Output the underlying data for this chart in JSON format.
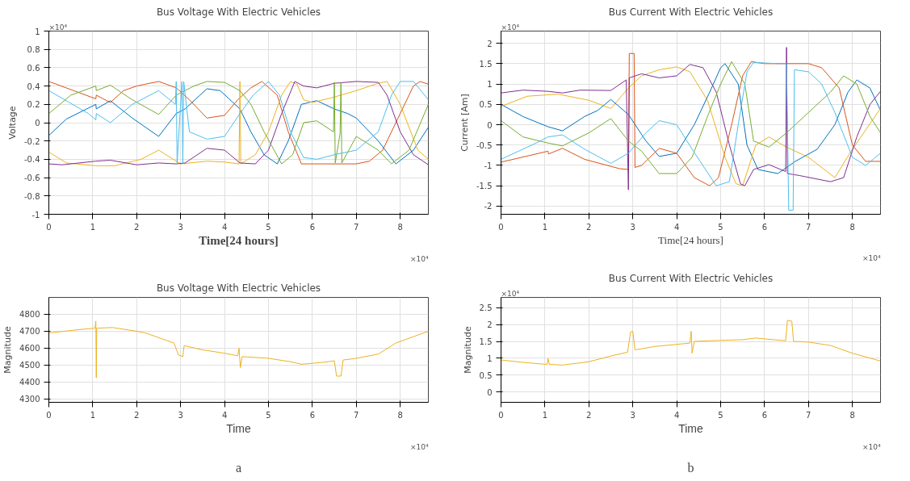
{
  "chart_data": [
    {
      "type": "line",
      "title": "Bus Voltage With Electric Vehicles",
      "xlabel": "Time[24 hours]",
      "ylabel": "Voltage",
      "annotations": [
        "×10⁴",
        "×10⁴"
      ],
      "xlim": [
        0,
        8.64
      ],
      "xticks": [
        0,
        1,
        2,
        3,
        4,
        5,
        6,
        7,
        8
      ],
      "ylim": [
        -1,
        1
      ],
      "yticks": [
        -1,
        -0.8,
        -0.6,
        -0.4,
        -0.2,
        0,
        0.2,
        0.4,
        0.6,
        0.8,
        1
      ],
      "grid": true,
      "marker": "none",
      "line_style": "solid",
      "series": [
        {
          "color": "#0072bd",
          "x": [
            0,
            0.4,
            1.07,
            1.08,
            1.4,
            1.9,
            2.5,
            2.9,
            3.1,
            3.6,
            3.9,
            4.35,
            4.6,
            4.9,
            5.2,
            5.45,
            5.75,
            6.1,
            6.5,
            6.8,
            7.0,
            7.5,
            7.9,
            8.3,
            8.64
          ],
          "values": [
            -0.14,
            0.04,
            0.2,
            0.15,
            0.24,
            0.05,
            -0.15,
            0.1,
            0.15,
            0.37,
            0.35,
            0.15,
            -0.1,
            -0.35,
            -0.45,
            -0.2,
            0.2,
            0.24,
            0.15,
            0.1,
            0.05,
            -0.2,
            -0.45,
            -0.3,
            -0.05
          ]
        },
        {
          "color": "#d95319",
          "x": [
            0,
            1.07,
            1.08,
            1.4,
            1.7,
            2.0,
            2.5,
            2.9,
            3.2,
            3.6,
            4.0,
            4.3,
            4.6,
            4.85,
            5.2,
            5.45,
            5.75,
            7.0,
            7.3,
            7.6,
            8.0,
            8.3,
            8.45,
            8.64
          ],
          "values": [
            0.45,
            0.26,
            0.3,
            0.22,
            0.35,
            0.4,
            0.45,
            0.38,
            0.25,
            0.05,
            0.08,
            0.25,
            0.38,
            0.45,
            0.3,
            -0.1,
            -0.45,
            -0.45,
            -0.42,
            -0.3,
            0.1,
            0.4,
            0.45,
            0.42
          ]
        },
        {
          "color": "#edb120",
          "x": [
            0,
            0.4,
            1.07,
            1.5,
            2.1,
            2.5,
            3.0,
            3.6,
            4.0,
            4.33,
            4.35,
            4.37,
            4.7,
            5.0,
            5.3,
            5.5,
            5.65,
            5.8,
            6.0,
            6.5,
            7.0,
            7.5,
            7.7,
            8.0,
            8.4,
            8.64
          ],
          "values": [
            -0.32,
            -0.44,
            -0.47,
            -0.47,
            -0.4,
            -0.3,
            -0.45,
            -0.42,
            -0.43,
            -0.45,
            0.45,
            -0.45,
            -0.35,
            -0.1,
            0.3,
            0.45,
            0.42,
            0.25,
            0.22,
            0.28,
            0.35,
            0.43,
            0.45,
            0.2,
            -0.3,
            -0.4
          ]
        },
        {
          "color": "#7e2f8e",
          "x": [
            0,
            0.3,
            1.07,
            1.4,
            2.0,
            2.5,
            2.9,
            3.1,
            3.6,
            4.0,
            4.35,
            4.7,
            5.0,
            5.3,
            5.6,
            5.8,
            6.1,
            6.5,
            7.0,
            7.5,
            7.7,
            8.0,
            8.3,
            8.64
          ],
          "values": [
            -0.45,
            -0.46,
            -0.42,
            -0.41,
            -0.46,
            -0.44,
            -0.45,
            -0.44,
            -0.28,
            -0.3,
            -0.44,
            -0.45,
            -0.3,
            0.1,
            0.45,
            0.4,
            0.38,
            0.43,
            0.45,
            0.44,
            0.3,
            -0.1,
            -0.35,
            -0.46
          ]
        },
        {
          "color": "#77ac30",
          "x": [
            0,
            0.5,
            1.07,
            1.08,
            1.4,
            1.9,
            2.5,
            2.9,
            3.3,
            3.6,
            4.0,
            4.35,
            4.6,
            4.9,
            5.3,
            5.55,
            5.8,
            6.1,
            6.48,
            6.5,
            6.52,
            6.63,
            6.65,
            6.67,
            7.0,
            7.5,
            7.8,
            8.2,
            8.64
          ],
          "values": [
            0.1,
            0.3,
            0.4,
            0.35,
            0.41,
            0.25,
            0.09,
            0.3,
            0.4,
            0.45,
            0.44,
            0.35,
            0.2,
            -0.1,
            -0.45,
            -0.35,
            0,
            0.02,
            -0.1,
            0.44,
            -0.44,
            -0.12,
            0.44,
            -0.44,
            -0.15,
            -0.3,
            -0.45,
            -0.3,
            0.2
          ]
        },
        {
          "color": "#4dbeee",
          "x": [
            0,
            0.9,
            1.07,
            1.08,
            1.4,
            1.9,
            2.5,
            2.88,
            2.9,
            2.92,
            3.03,
            3.05,
            3.07,
            3.2,
            3.6,
            4.0,
            4.35,
            4.65,
            5.0,
            5.25,
            5.5,
            5.8,
            6.1,
            6.5,
            7.0,
            7.5,
            7.8,
            8.0,
            8.3,
            8.64
          ],
          "values": [
            0.35,
            0.1,
            0.03,
            0.1,
            0,
            0.2,
            0.35,
            0.2,
            0.45,
            -0.45,
            0.45,
            -0.45,
            0.45,
            -0.1,
            -0.18,
            -0.15,
            0.1,
            0.3,
            0.45,
            0.3,
            -0.1,
            -0.38,
            -0.4,
            -0.35,
            -0.3,
            -0.1,
            0.3,
            0.45,
            0.45,
            0.25
          ]
        }
      ]
    },
    {
      "type": "line",
      "title": "Bus Current With Electric Vehicles",
      "xlabel": "Time[24 hours]",
      "ylabel": "Current [Am]",
      "annotations": [
        "×10⁴",
        "×10⁴"
      ],
      "xlim": [
        0,
        8.64
      ],
      "xticks": [
        0,
        1,
        2,
        3,
        4,
        5,
        6,
        7,
        8
      ],
      "ylim": [
        -2.2,
        2.3
      ],
      "yticks": [
        -2,
        -1.5,
        -1,
        -0.5,
        0,
        0.5,
        1,
        1.5,
        2
      ],
      "grid": true,
      "marker": "none",
      "line_style": "solid",
      "series": [
        {
          "color": "#0072bd",
          "x": [
            0,
            0.5,
            1.07,
            1.4,
            1.9,
            2.2,
            2.5,
            2.9,
            3.3,
            3.6,
            4.0,
            4.4,
            4.75,
            5.0,
            5.1,
            5.4,
            5.6,
            5.85,
            6.3,
            6.7,
            7.2,
            7.6,
            7.9,
            8.1,
            8.4,
            8.64
          ],
          "values": [
            0.5,
            0.2,
            -0.05,
            -0.15,
            0.2,
            0.35,
            0.62,
            0.25,
            -0.4,
            -0.78,
            -0.7,
            0,
            0.8,
            1.4,
            1.5,
            1.0,
            -0.5,
            -1.1,
            -1.2,
            -0.9,
            -0.6,
            0,
            0.8,
            1.1,
            0.9,
            0.35
          ]
        },
        {
          "color": "#d95319",
          "x": [
            0,
            1.07,
            1.08,
            1.4,
            1.9,
            2.7,
            2.9,
            2.92,
            3.03,
            3.05,
            3.2,
            3.6,
            4.0,
            4.4,
            4.75,
            4.95,
            5.25,
            5.5,
            5.7,
            6.0,
            6.5,
            7.0,
            7.3,
            7.7,
            8.0,
            8.3,
            8.64
          ],
          "values": [
            -0.92,
            -0.65,
            -0.72,
            -0.58,
            -0.85,
            -1.08,
            -1.1,
            1.75,
            1.75,
            -1.05,
            -1.0,
            -0.58,
            -0.7,
            -1.3,
            -1.5,
            -1.3,
            0,
            1.2,
            1.55,
            1.5,
            1.5,
            1.5,
            1.4,
            0.9,
            -0.5,
            -0.9,
            -0.9
          ]
        },
        {
          "color": "#edb120",
          "x": [
            0,
            0.6,
            1.3,
            2.0,
            2.5,
            2.9,
            3.2,
            3.6,
            4.0,
            4.3,
            4.7,
            5.1,
            5.35,
            5.5,
            5.8,
            6.1,
            6.5,
            7.0,
            7.6,
            8.0,
            8.64
          ],
          "values": [
            0.45,
            0.7,
            0.75,
            0.6,
            0.4,
            0.9,
            1.2,
            1.35,
            1.42,
            1.3,
            0.6,
            -0.8,
            -1.45,
            -1.5,
            -0.5,
            -0.3,
            -0.55,
            -0.8,
            -1.3,
            -0.6,
            0.4
          ]
        },
        {
          "color": "#7e2f8e",
          "x": [
            0,
            0.5,
            1.07,
            1.4,
            1.8,
            2.5,
            2.85,
            2.9,
            2.92,
            3.2,
            3.6,
            4.0,
            4.3,
            4.6,
            4.9,
            5.2,
            5.45,
            5.55,
            5.75,
            6.1,
            6.48,
            6.5,
            6.52,
            6.8,
            7.5,
            7.8,
            8.1,
            8.4,
            8.64
          ],
          "values": [
            0.78,
            0.85,
            0.82,
            0.78,
            0.85,
            0.84,
            1.1,
            -1.6,
            1.15,
            1.25,
            1.15,
            1.2,
            1.48,
            1.4,
            0.8,
            -0.5,
            -1.45,
            -1.5,
            -1.1,
            -0.98,
            -1.15,
            1.9,
            -1.2,
            -1.25,
            -1.4,
            -1.3,
            -0.3,
            0.5,
            0.82
          ]
        },
        {
          "color": "#77ac30",
          "x": [
            0,
            0.5,
            1.07,
            1.4,
            2.0,
            2.5,
            2.9,
            3.2,
            3.6,
            4.0,
            4.35,
            4.7,
            5.0,
            5.25,
            5.55,
            5.75,
            6.1,
            6.5,
            7.0,
            7.5,
            7.8,
            8.1,
            8.4,
            8.64
          ],
          "values": [
            0.1,
            -0.3,
            -0.45,
            -0.52,
            -0.2,
            0.15,
            -0.4,
            -0.65,
            -1.2,
            -1.2,
            -0.8,
            0.2,
            1.0,
            1.55,
            1.0,
            -0.4,
            -0.55,
            -0.2,
            0.3,
            0.8,
            1.2,
            1.0,
            0.2,
            -0.2
          ]
        },
        {
          "color": "#4dbeee",
          "x": [
            0,
            0.8,
            1.07,
            1.4,
            1.9,
            2.5,
            2.9,
            3.3,
            3.6,
            4.0,
            4.35,
            4.9,
            5.2,
            5.4,
            5.6,
            5.75,
            6.3,
            6.5,
            6.55,
            6.65,
            6.68,
            7.0,
            7.3,
            7.6,
            8.0,
            8.3,
            8.64
          ],
          "values": [
            -0.85,
            -0.45,
            -0.3,
            -0.25,
            -0.6,
            -0.95,
            -0.7,
            -0.2,
            0.1,
            0,
            -0.6,
            -1.5,
            -1.4,
            0,
            1.3,
            1.53,
            1.5,
            1.5,
            -2.1,
            -2.1,
            1.35,
            1.3,
            1.0,
            0.3,
            -0.8,
            -1.0,
            -0.7
          ]
        }
      ]
    },
    {
      "type": "line",
      "title": "Bus Voltage With Electric Vehicles",
      "xlabel": "Time",
      "ylabel": "Magnitude",
      "annotations": [
        "×10⁴",
        "a"
      ],
      "xlim": [
        0,
        8.64
      ],
      "xticks": [
        0,
        1,
        2,
        3,
        4,
        5,
        6,
        7,
        8
      ],
      "ylim": [
        4280,
        4900
      ],
      "yticks": [
        4300,
        4400,
        4500,
        4600,
        4700,
        4800
      ],
      "grid": true,
      "marker": "none",
      "line_style": "solid",
      "series": [
        {
          "color": "#edb120",
          "x": [
            0,
            0.7,
            1.05,
            1.07,
            1.08,
            1.09,
            1.45,
            2.0,
            2.2,
            2.85,
            2.95,
            3.05,
            3.08,
            3.5,
            4.0,
            4.3,
            4.33,
            4.36,
            4.4,
            5.0,
            5.5,
            5.75,
            6.2,
            6.5,
            6.55,
            6.65,
            6.7,
            7.0,
            7.5,
            7.9,
            8.64
          ],
          "values": [
            4690,
            4710,
            4718,
            4760,
            4425,
            4718,
            4722,
            4700,
            4690,
            4630,
            4560,
            4550,
            4615,
            4590,
            4570,
            4555,
            4600,
            4485,
            4550,
            4540,
            4520,
            4505,
            4515,
            4525,
            4435,
            4435,
            4530,
            4540,
            4565,
            4630,
            4700
          ]
        }
      ]
    },
    {
      "type": "line",
      "title": "Bus Current With Electric Vehicles",
      "xlabel": "Time",
      "ylabel": "Magnitude",
      "annotations": [
        "×10⁴",
        "×10⁴",
        "b"
      ],
      "xlim": [
        0,
        8.64
      ],
      "xticks": [
        0,
        1,
        2,
        3,
        4,
        5,
        6,
        7,
        8
      ],
      "ylim": [
        -0.3,
        2.8
      ],
      "yticks": [
        0,
        0.5,
        1,
        1.5,
        2,
        2.5
      ],
      "grid": true,
      "marker": "none",
      "line_style": "solid",
      "series": [
        {
          "color": "#edb120",
          "x": [
            0,
            0.5,
            1.05,
            1.07,
            1.1,
            1.4,
            2.0,
            2.6,
            2.88,
            2.95,
            3.0,
            3.05,
            3.5,
            4.3,
            4.33,
            4.35,
            4.4,
            5.0,
            5.5,
            5.8,
            6.2,
            6.48,
            6.52,
            6.62,
            6.66,
            7.0,
            7.5,
            8.0,
            8.64
          ],
          "values": [
            0.95,
            0.88,
            0.82,
            1.0,
            0.82,
            0.8,
            0.9,
            1.1,
            1.18,
            1.78,
            1.8,
            1.25,
            1.35,
            1.45,
            1.8,
            1.15,
            1.5,
            1.53,
            1.55,
            1.6,
            1.55,
            1.52,
            2.12,
            2.1,
            1.5,
            1.48,
            1.38,
            1.15,
            0.92
          ]
        }
      ]
    }
  ]
}
